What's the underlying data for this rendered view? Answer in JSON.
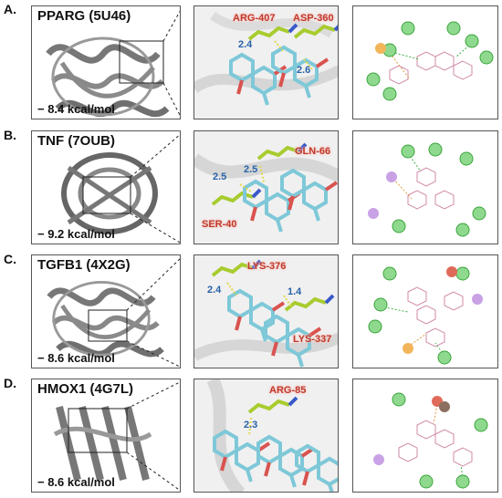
{
  "rows": [
    {
      "label": "A.",
      "protein": "PPARG (5U46)",
      "energy": "− 8.4 kcal/mol",
      "residues": [
        "ARG-407",
        "ASP-360"
      ],
      "distances": [
        "2.4",
        "2.6"
      ]
    },
    {
      "label": "B.",
      "protein": "TNF (7OUB)",
      "energy": "− 9.2 kcal/mol",
      "residues": [
        "GLN-66",
        "SER-40"
      ],
      "distances": [
        "2.5",
        "2.5"
      ]
    },
    {
      "label": "C.",
      "protein": "TGFB1 (4X2G)",
      "energy": "− 8.6 kcal/mol",
      "residues": [
        "LYS-376",
        "LYS-337"
      ],
      "distances": [
        "2.4",
        "1.4"
      ]
    },
    {
      "label": "D.",
      "protein": "HMOX1 (4G7L)",
      "energy": "− 8.6 kcal/mol",
      "residues": [
        "ARG-85"
      ],
      "distances": [
        "2.3"
      ]
    }
  ],
  "colors": {
    "residue_label": "#c0392b",
    "distance_label": "#2962a8",
    "ligand_carbon": "#7ec8d8",
    "residue_carbon": "#a8cc2f",
    "protein_ribbon": "#7a7a7a",
    "hbond": "#3cb043"
  }
}
